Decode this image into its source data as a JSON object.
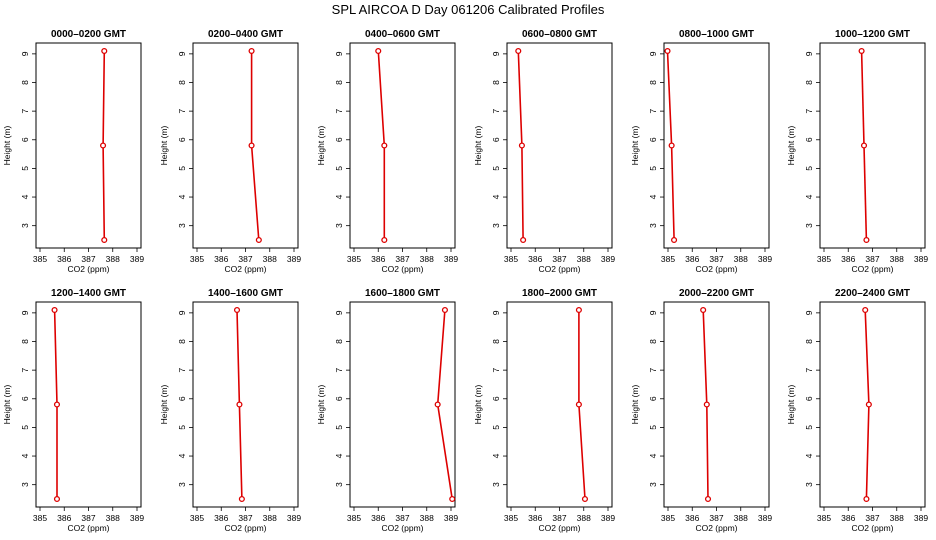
{
  "title": "SPL AIRCOA D  Day 061206  Calibrated Profiles",
  "chart_data": [
    {
      "type": "line",
      "title": "0000–0200 GMT",
      "xlabel": "CO2 (ppm)",
      "ylabel": "Height (m)",
      "xlim": [
        385,
        389
      ],
      "ylim": [
        2.5,
        9.1
      ],
      "xticks": [
        385,
        386,
        387,
        388,
        389
      ],
      "yticks": [
        3,
        4,
        5,
        6,
        7,
        8,
        9
      ],
      "grid": false,
      "series": [
        {
          "x": [
            387.65,
            387.6,
            387.65
          ],
          "y": [
            9.1,
            5.8,
            2.5
          ]
        }
      ]
    },
    {
      "type": "line",
      "title": "0200–0400 GMT",
      "xlabel": "CO2 (ppm)",
      "ylabel": "Height (m)",
      "xlim": [
        385,
        389
      ],
      "ylim": [
        2.5,
        9.1
      ],
      "xticks": [
        385,
        386,
        387,
        388,
        389
      ],
      "yticks": [
        3,
        4,
        5,
        6,
        7,
        8,
        9
      ],
      "grid": false,
      "series": [
        {
          "x": [
            387.25,
            387.25,
            387.55
          ],
          "y": [
            9.1,
            5.8,
            2.5
          ]
        }
      ]
    },
    {
      "type": "line",
      "title": "0400–0600 GMT",
      "xlabel": "CO2 (ppm)",
      "ylabel": "Height (m)",
      "xlim": [
        385,
        389
      ],
      "ylim": [
        2.5,
        9.1
      ],
      "xticks": [
        385,
        386,
        387,
        388,
        389
      ],
      "yticks": [
        3,
        4,
        5,
        6,
        7,
        8,
        9
      ],
      "grid": false,
      "series": [
        {
          "x": [
            386.0,
            386.25,
            386.25
          ],
          "y": [
            9.1,
            5.8,
            2.5
          ]
        }
      ]
    },
    {
      "type": "line",
      "title": "0600–0800 GMT",
      "xlabel": "CO2 (ppm)",
      "ylabel": "Height (m)",
      "xlim": [
        385,
        389
      ],
      "ylim": [
        2.5,
        9.1
      ],
      "xticks": [
        385,
        386,
        387,
        388,
        389
      ],
      "yticks": [
        3,
        4,
        5,
        6,
        7,
        8,
        9
      ],
      "grid": false,
      "series": [
        {
          "x": [
            385.3,
            385.45,
            385.5
          ],
          "y": [
            9.1,
            5.8,
            2.5
          ]
        }
      ]
    },
    {
      "type": "line",
      "title": "0800–1000 GMT",
      "xlabel": "CO2 (ppm)",
      "ylabel": "Height (m)",
      "xlim": [
        385,
        389
      ],
      "ylim": [
        2.5,
        9.1
      ],
      "xticks": [
        385,
        386,
        387,
        388,
        389
      ],
      "yticks": [
        3,
        4,
        5,
        6,
        7,
        8,
        9
      ],
      "grid": false,
      "series": [
        {
          "x": [
            384.98,
            385.15,
            385.25
          ],
          "y": [
            9.1,
            5.8,
            2.5
          ]
        }
      ]
    },
    {
      "type": "line",
      "title": "1000–1200 GMT",
      "xlabel": "CO2 (ppm)",
      "ylabel": "Height (m)",
      "xlim": [
        385,
        389
      ],
      "ylim": [
        2.5,
        9.1
      ],
      "xticks": [
        385,
        386,
        387,
        388,
        389
      ],
      "yticks": [
        3,
        4,
        5,
        6,
        7,
        8,
        9
      ],
      "grid": false,
      "series": [
        {
          "x": [
            386.55,
            386.65,
            386.75
          ],
          "y": [
            9.1,
            5.8,
            2.5
          ]
        }
      ]
    },
    {
      "type": "line",
      "title": "1200–1400 GMT",
      "xlabel": "CO2 (ppm)",
      "ylabel": "Height (m)",
      "xlim": [
        385,
        389
      ],
      "ylim": [
        2.5,
        9.1
      ],
      "xticks": [
        385,
        386,
        387,
        388,
        389
      ],
      "yticks": [
        3,
        4,
        5,
        6,
        7,
        8,
        9
      ],
      "grid": false,
      "series": [
        {
          "x": [
            385.6,
            385.7,
            385.7
          ],
          "y": [
            9.1,
            5.8,
            2.5
          ]
        }
      ]
    },
    {
      "type": "line",
      "title": "1400–1600 GMT",
      "xlabel": "CO2 (ppm)",
      "ylabel": "Height (m)",
      "xlim": [
        385,
        389
      ],
      "ylim": [
        2.5,
        9.1
      ],
      "xticks": [
        385,
        386,
        387,
        388,
        389
      ],
      "yticks": [
        3,
        4,
        5,
        6,
        7,
        8,
        9
      ],
      "grid": false,
      "series": [
        {
          "x": [
            386.65,
            386.75,
            386.85
          ],
          "y": [
            9.1,
            5.8,
            2.5
          ]
        }
      ]
    },
    {
      "type": "line",
      "title": "1600–1800 GMT",
      "xlabel": "CO2 (ppm)",
      "ylabel": "Height (m)",
      "xlim": [
        385,
        389
      ],
      "ylim": [
        2.5,
        9.1
      ],
      "xticks": [
        385,
        386,
        387,
        388,
        389
      ],
      "yticks": [
        3,
        4,
        5,
        6,
        7,
        8,
        9
      ],
      "grid": false,
      "series": [
        {
          "x": [
            388.75,
            388.45,
            389.05
          ],
          "y": [
            9.1,
            5.8,
            2.5
          ]
        }
      ]
    },
    {
      "type": "line",
      "title": "1800–2000 GMT",
      "xlabel": "CO2 (ppm)",
      "ylabel": "Height (m)",
      "xlim": [
        385,
        389
      ],
      "ylim": [
        2.5,
        9.1
      ],
      "xticks": [
        385,
        386,
        387,
        388,
        389
      ],
      "yticks": [
        3,
        4,
        5,
        6,
        7,
        8,
        9
      ],
      "grid": false,
      "series": [
        {
          "x": [
            387.8,
            387.8,
            388.05
          ],
          "y": [
            9.1,
            5.8,
            2.5
          ]
        }
      ]
    },
    {
      "type": "line",
      "title": "2000–2200 GMT",
      "xlabel": "CO2 (ppm)",
      "ylabel": "Height (m)",
      "xlim": [
        385,
        389
      ],
      "ylim": [
        2.5,
        9.1
      ],
      "xticks": [
        385,
        386,
        387,
        388,
        389
      ],
      "yticks": [
        3,
        4,
        5,
        6,
        7,
        8,
        9
      ],
      "grid": false,
      "series": [
        {
          "x": [
            386.45,
            386.6,
            386.65
          ],
          "y": [
            9.1,
            5.8,
            2.5
          ]
        }
      ]
    },
    {
      "type": "line",
      "title": "2200–2400 GMT",
      "xlabel": "CO2 (ppm)",
      "ylabel": "Height (m)",
      "xlim": [
        385,
        389
      ],
      "ylim": [
        2.5,
        9.1
      ],
      "xticks": [
        385,
        386,
        387,
        388,
        389
      ],
      "yticks": [
        3,
        4,
        5,
        6,
        7,
        8,
        9
      ],
      "grid": false,
      "series": [
        {
          "x": [
            386.7,
            386.85,
            386.75
          ],
          "y": [
            9.1,
            5.8,
            2.5
          ]
        }
      ]
    }
  ],
  "colors": {
    "series": "#dd0000",
    "axes": "#000000",
    "background": "#ffffff"
  },
  "marker": "open-circle"
}
